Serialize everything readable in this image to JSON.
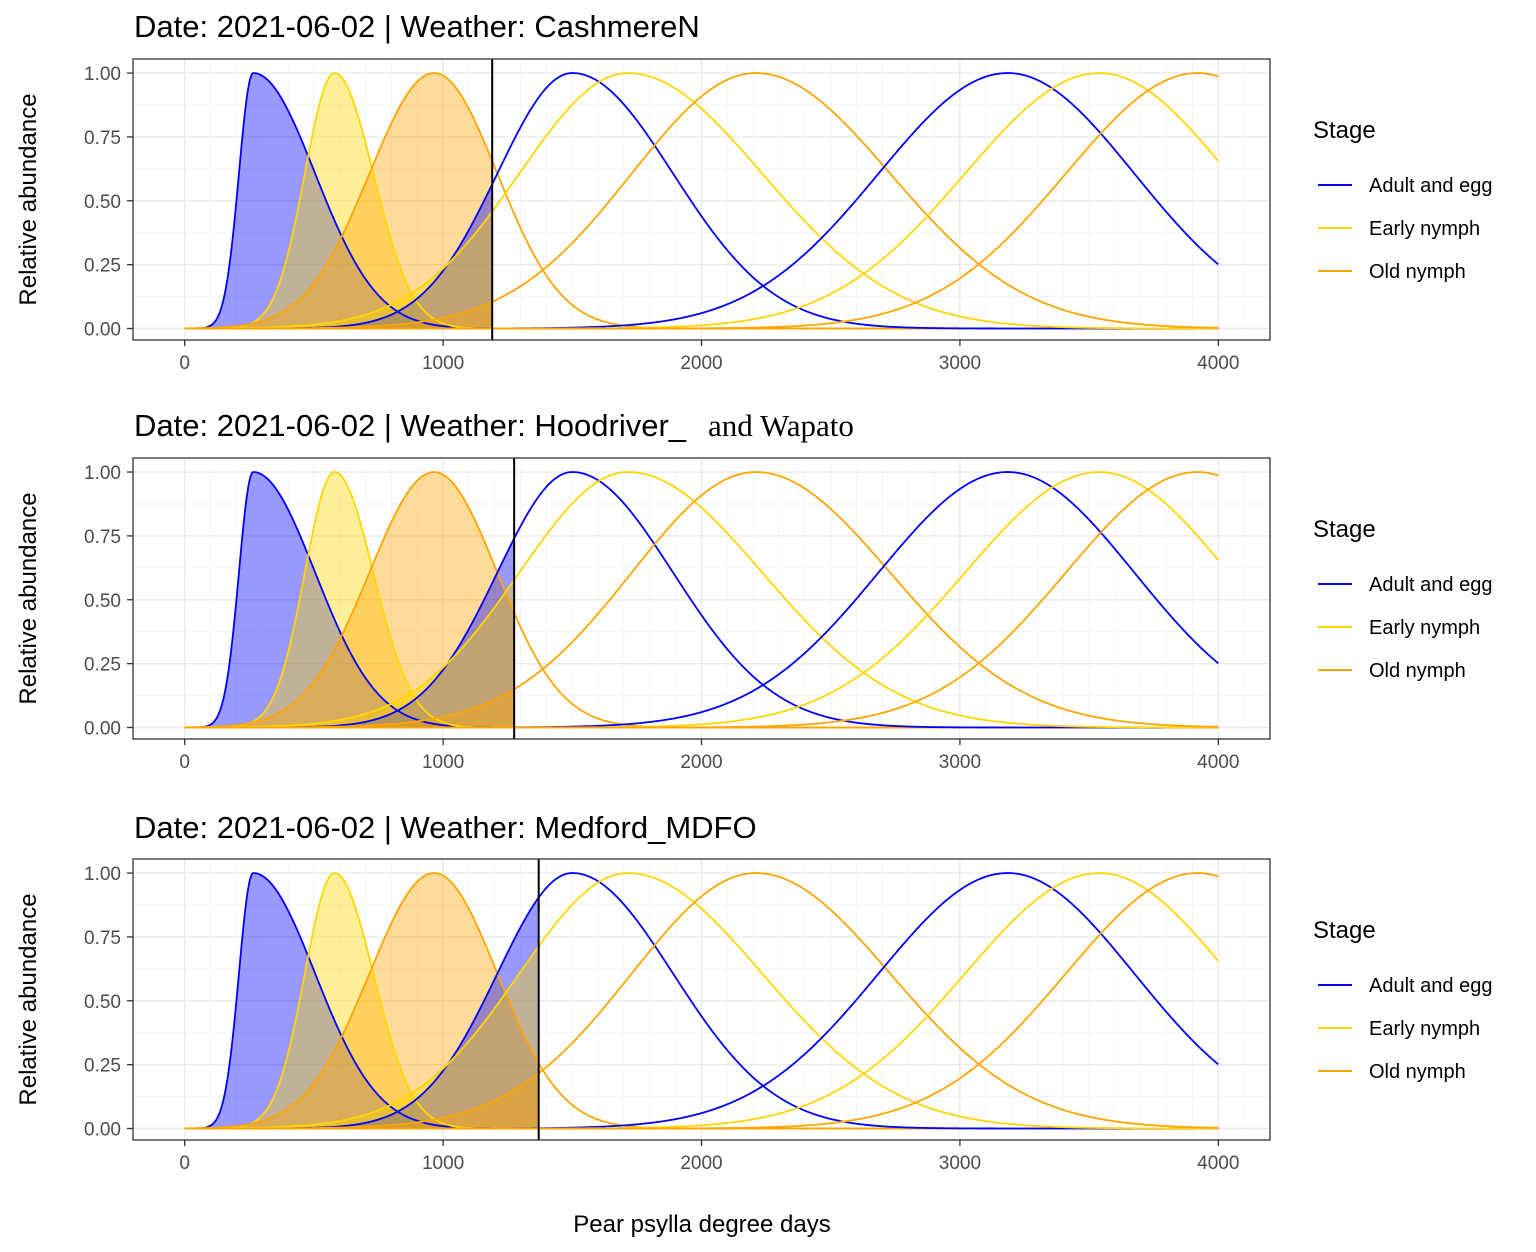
{
  "chart_data": [
    {
      "type": "area",
      "title": "Date: 2021-06-02 | Weather: CashmereN",
      "ylabel": "Relative abundance",
      "xlim": [
        -200,
        4200
      ],
      "ylim": [
        -0.045,
        1.055
      ],
      "x_ticks": [
        0,
        1000,
        2000,
        3000,
        4000
      ],
      "x_tick_labels": [
        "0",
        "1000",
        "2000",
        "3000",
        "4000"
      ],
      "y_ticks": [
        0,
        0.25,
        0.5,
        0.75,
        1
      ],
      "y_tick_labels": [
        "0.00",
        "0.25",
        "0.50",
        "0.75",
        "1.00"
      ],
      "current_degree_days": 1190,
      "series": [
        {
          "name": "Adult and egg",
          "generation": 1,
          "peak_x": 265,
          "peak_y": 1.0,
          "sd_left": 55,
          "sd_right": 240,
          "start_x": 0
        },
        {
          "name": "Early nymph",
          "generation": 1,
          "peak_x": 580,
          "peak_y": 1.0,
          "sd_left": 115,
          "sd_right": 150,
          "start_x": 0
        },
        {
          "name": "Old nymph",
          "generation": 1,
          "peak_x": 965,
          "peak_y": 1.0,
          "sd_left": 250,
          "sd_right": 245,
          "start_x": 0
        },
        {
          "name": "Adult and egg",
          "generation": 2,
          "peak_x": 1500,
          "peak_y": 1.0,
          "sd_left": 290,
          "sd_right": 390,
          "start_x": 0
        },
        {
          "name": "Early nymph",
          "generation": 2,
          "peak_x": 1715,
          "peak_y": 1.0,
          "sd_left": 420,
          "sd_right": 520,
          "start_x": 0
        },
        {
          "name": "Old nymph",
          "generation": 2,
          "peak_x": 2210,
          "peak_y": 1.0,
          "sd_left": 480,
          "sd_right": 520,
          "start_x": 0
        },
        {
          "name": "Adult and egg",
          "generation": 3,
          "peak_x": 3185,
          "peak_y": 1.0,
          "sd_left": 500,
          "sd_right": 490,
          "start_x": 0
        },
        {
          "name": "Early nymph",
          "generation": 3,
          "peak_x": 3540,
          "peak_y": 1.0,
          "sd_left": 520,
          "sd_right": 500,
          "start_x": 0
        },
        {
          "name": "Old nymph",
          "generation": 3,
          "peak_x": 3920,
          "peak_y": 1.0,
          "sd_left": 510,
          "sd_right": 480,
          "start_x": 0
        }
      ]
    },
    {
      "type": "area",
      "title": "Date: 2021-06-02 | Weather: Hoodriver_",
      "title_suffix": "and Wapato",
      "ylabel": "Relative abundance",
      "xlim": [
        -200,
        4200
      ],
      "ylim": [
        -0.045,
        1.055
      ],
      "x_ticks": [
        0,
        1000,
        2000,
        3000,
        4000
      ],
      "x_tick_labels": [
        "0",
        "1000",
        "2000",
        "3000",
        "4000"
      ],
      "y_ticks": [
        0,
        0.25,
        0.5,
        0.75,
        1
      ],
      "y_tick_labels": [
        "0.00",
        "0.25",
        "0.50",
        "0.75",
        "1.00"
      ],
      "current_degree_days": 1275,
      "series": [
        {
          "name": "Adult and egg",
          "generation": 1,
          "peak_x": 265,
          "peak_y": 1.0,
          "sd_left": 55,
          "sd_right": 240,
          "start_x": 0
        },
        {
          "name": "Early nymph",
          "generation": 1,
          "peak_x": 580,
          "peak_y": 1.0,
          "sd_left": 115,
          "sd_right": 150,
          "start_x": 0
        },
        {
          "name": "Old nymph",
          "generation": 1,
          "peak_x": 965,
          "peak_y": 1.0,
          "sd_left": 250,
          "sd_right": 245,
          "start_x": 0
        },
        {
          "name": "Adult and egg",
          "generation": 2,
          "peak_x": 1500,
          "peak_y": 1.0,
          "sd_left": 290,
          "sd_right": 390,
          "start_x": 0
        },
        {
          "name": "Early nymph",
          "generation": 2,
          "peak_x": 1715,
          "peak_y": 1.0,
          "sd_left": 420,
          "sd_right": 520,
          "start_x": 0
        },
        {
          "name": "Old nymph",
          "generation": 2,
          "peak_x": 2210,
          "peak_y": 1.0,
          "sd_left": 480,
          "sd_right": 520,
          "start_x": 0
        },
        {
          "name": "Adult and egg",
          "generation": 3,
          "peak_x": 3185,
          "peak_y": 1.0,
          "sd_left": 500,
          "sd_right": 490,
          "start_x": 0
        },
        {
          "name": "Early nymph",
          "generation": 3,
          "peak_x": 3540,
          "peak_y": 1.0,
          "sd_left": 520,
          "sd_right": 500,
          "start_x": 0
        },
        {
          "name": "Old nymph",
          "generation": 3,
          "peak_x": 3920,
          "peak_y": 1.0,
          "sd_left": 510,
          "sd_right": 480,
          "start_x": 0
        }
      ]
    },
    {
      "type": "area",
      "title": "Date: 2021-06-02 | Weather: Medford_MDFO",
      "ylabel": "Relative abundance",
      "xlim": [
        -200,
        4200
      ],
      "ylim": [
        -0.045,
        1.055
      ],
      "x_ticks": [
        0,
        1000,
        2000,
        3000,
        4000
      ],
      "x_tick_labels": [
        "0",
        "1000",
        "2000",
        "3000",
        "4000"
      ],
      "y_ticks": [
        0,
        0.25,
        0.5,
        0.75,
        1
      ],
      "y_tick_labels": [
        "0.00",
        "0.25",
        "0.50",
        "0.75",
        "1.00"
      ],
      "current_degree_days": 1370,
      "series": [
        {
          "name": "Adult and egg",
          "generation": 1,
          "peak_x": 265,
          "peak_y": 1.0,
          "sd_left": 55,
          "sd_right": 240,
          "start_x": 0
        },
        {
          "name": "Early nymph",
          "generation": 1,
          "peak_x": 580,
          "peak_y": 1.0,
          "sd_left": 115,
          "sd_right": 150,
          "start_x": 0
        },
        {
          "name": "Old nymph",
          "generation": 1,
          "peak_x": 965,
          "peak_y": 1.0,
          "sd_left": 250,
          "sd_right": 245,
          "start_x": 0
        },
        {
          "name": "Adult and egg",
          "generation": 2,
          "peak_x": 1500,
          "peak_y": 1.0,
          "sd_left": 290,
          "sd_right": 390,
          "start_x": 0
        },
        {
          "name": "Early nymph",
          "generation": 2,
          "peak_x": 1715,
          "peak_y": 1.0,
          "sd_left": 420,
          "sd_right": 520,
          "start_x": 0
        },
        {
          "name": "Old nymph",
          "generation": 2,
          "peak_x": 2210,
          "peak_y": 1.0,
          "sd_left": 480,
          "sd_right": 520,
          "start_x": 0
        },
        {
          "name": "Adult and egg",
          "generation": 3,
          "peak_x": 3185,
          "peak_y": 1.0,
          "sd_left": 500,
          "sd_right": 490,
          "start_x": 0
        },
        {
          "name": "Early nymph",
          "generation": 3,
          "peak_x": 3540,
          "peak_y": 1.0,
          "sd_left": 520,
          "sd_right": 500,
          "start_x": 0
        },
        {
          "name": "Old nymph",
          "generation": 3,
          "peak_x": 3920,
          "peak_y": 1.0,
          "sd_left": 510,
          "sd_right": 480,
          "start_x": 0
        }
      ]
    }
  ],
  "xlabel": "Pear psylla degree days",
  "legend": {
    "title": "Stage",
    "position": "right",
    "items": [
      {
        "label": "Adult and egg",
        "color": "#0000ff"
      },
      {
        "label": "Early nymph",
        "color": "#ffd700"
      },
      {
        "label": "Old nymph",
        "color": "#ffa500"
      }
    ]
  },
  "colors": {
    "Adult and egg": "#0000ff",
    "Early nymph": "#ffd700",
    "Old nymph": "#ffa500",
    "fill_opacity": 0.4,
    "current_line": "#000000",
    "grid_major": "#ebebeb",
    "grid_minor": "#f5f5f5",
    "panel_border": "#333333"
  }
}
